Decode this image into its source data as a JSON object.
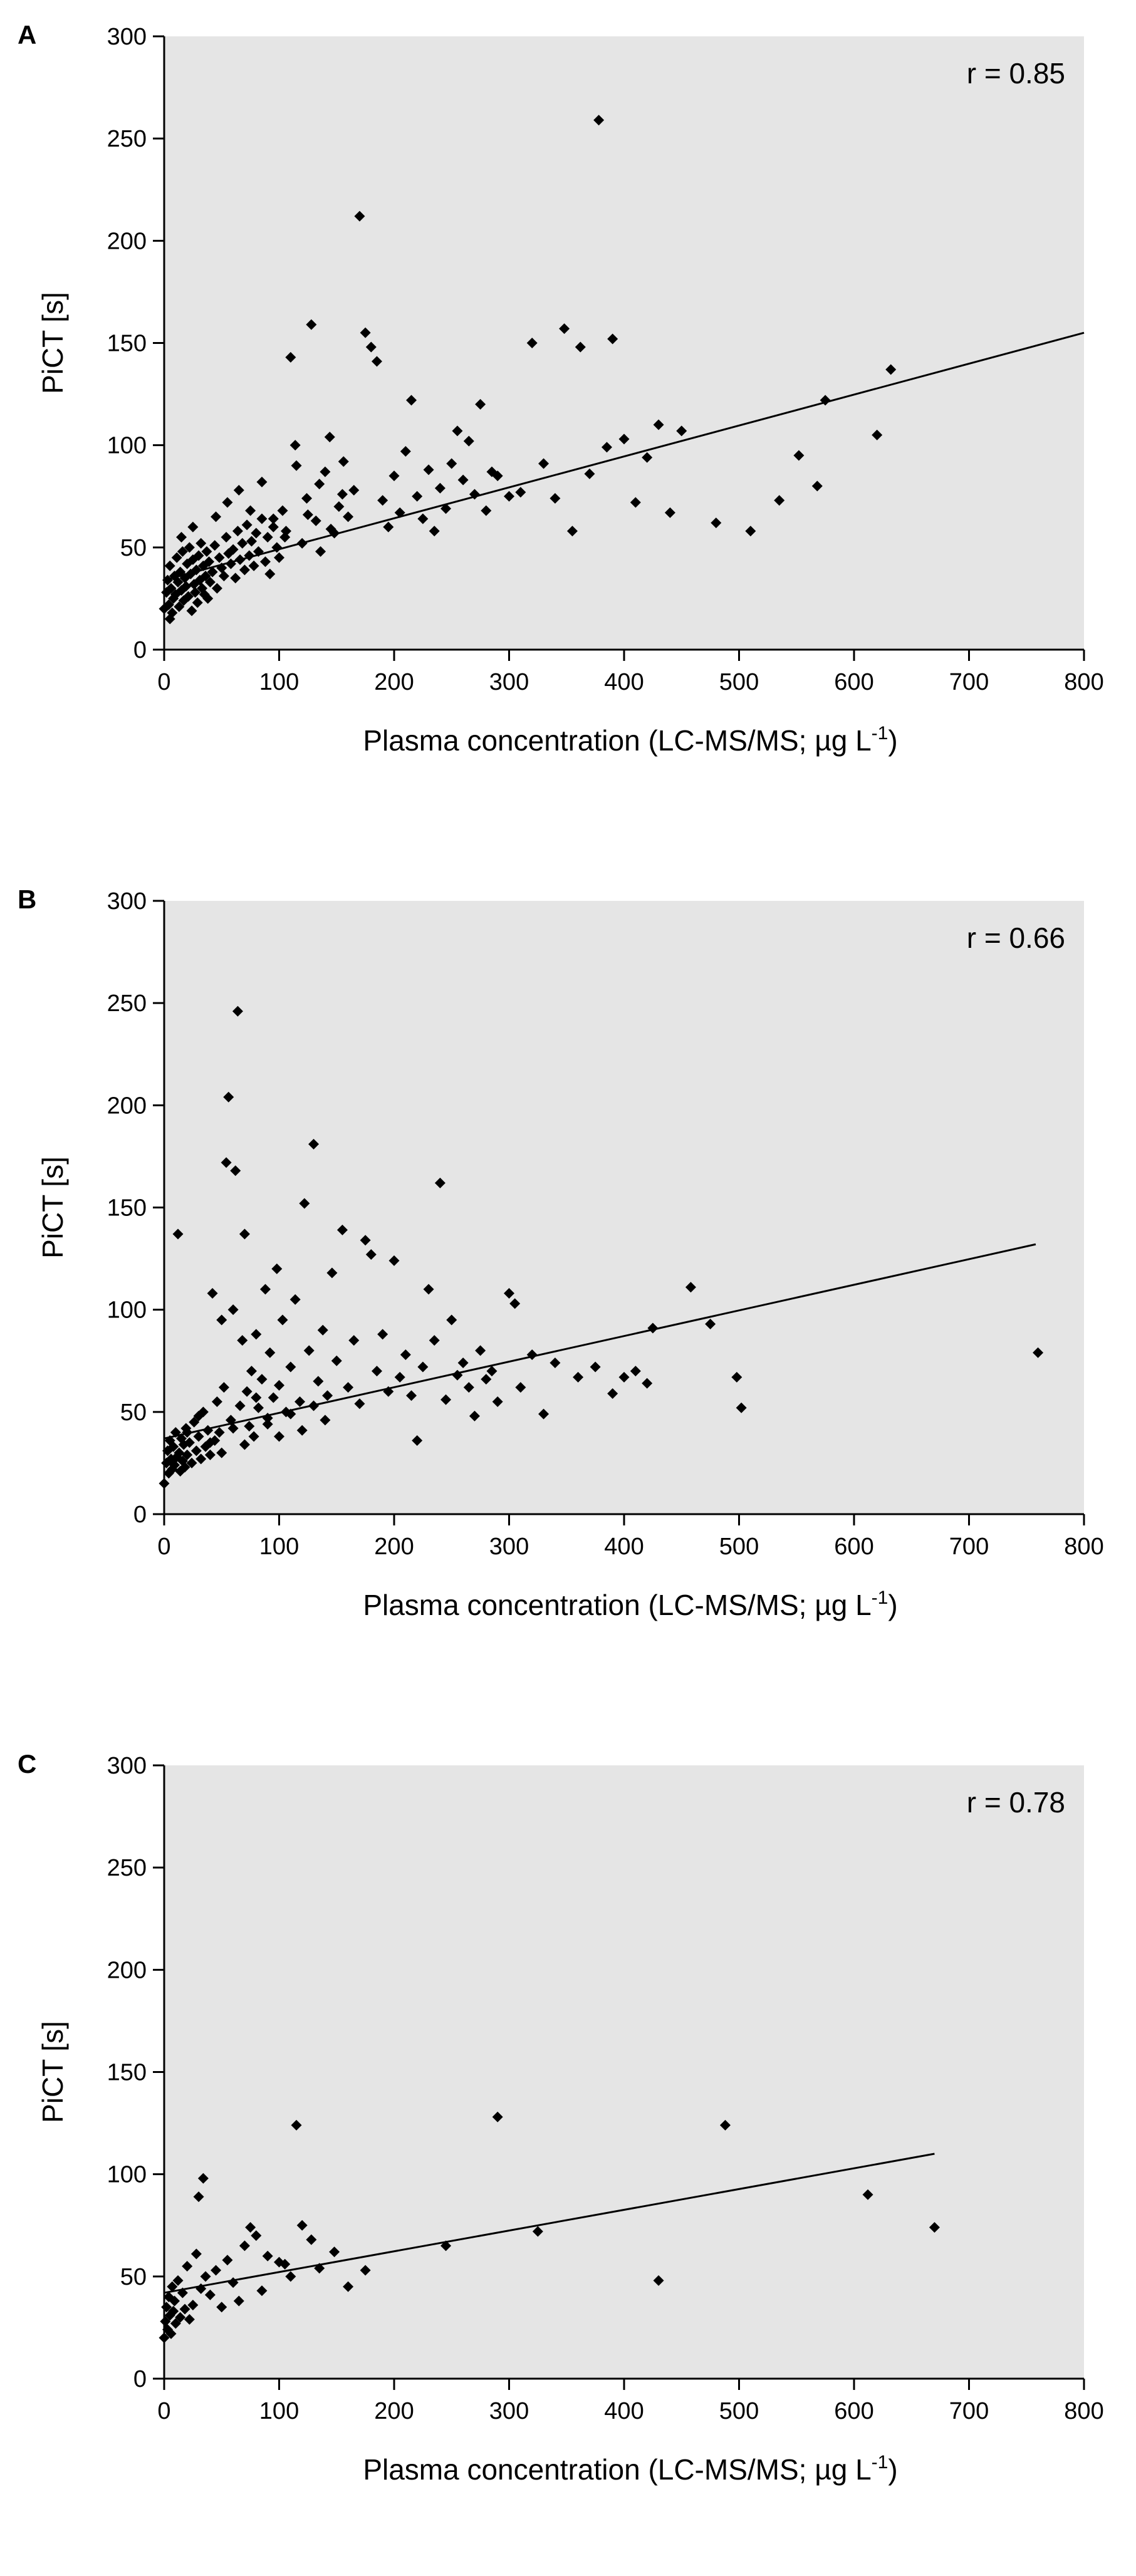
{
  "chart_data": [
    {
      "panel": "A",
      "type": "scatter",
      "xlabel": "Plasma concentration (LC-MS/MS; µg L",
      "xlabel_sup": "-1",
      "xlabel_end": ")",
      "ylabel": "PiCT [s]",
      "xlim": [
        0,
        800
      ],
      "ylim": [
        0,
        300
      ],
      "xticks": [
        0,
        100,
        200,
        300,
        400,
        500,
        600,
        700,
        800
      ],
      "yticks": [
        0,
        50,
        100,
        150,
        200,
        250,
        300
      ],
      "annotation": "r = 0.85",
      "regression": {
        "x": [
          0,
          800
        ],
        "y": [
          34,
          155
        ]
      },
      "points": [
        [
          0,
          20
        ],
        [
          2,
          28
        ],
        [
          3,
          34
        ],
        [
          4,
          22
        ],
        [
          5,
          41
        ],
        [
          6,
          30
        ],
        [
          7,
          18
        ],
        [
          8,
          25
        ],
        [
          9,
          36
        ],
        [
          10,
          27
        ],
        [
          11,
          45
        ],
        [
          12,
          33
        ],
        [
          13,
          21
        ],
        [
          14,
          38
        ],
        [
          15,
          29
        ],
        [
          16,
          48
        ],
        [
          17,
          24
        ],
        [
          18,
          35
        ],
        [
          19,
          31
        ],
        [
          20,
          42
        ],
        [
          21,
          26
        ],
        [
          22,
          50
        ],
        [
          23,
          37
        ],
        [
          24,
          19
        ],
        [
          25,
          44
        ],
        [
          26,
          32
        ],
        [
          27,
          28
        ],
        [
          28,
          39
        ],
        [
          29,
          23
        ],
        [
          30,
          46
        ],
        [
          31,
          34
        ],
        [
          32,
          52
        ],
        [
          33,
          30
        ],
        [
          34,
          41
        ],
        [
          35,
          27
        ],
        [
          36,
          36
        ],
        [
          37,
          48
        ],
        [
          38,
          25
        ],
        [
          39,
          43
        ],
        [
          40,
          33
        ],
        [
          42,
          38
        ],
        [
          44,
          51
        ],
        [
          46,
          30
        ],
        [
          48,
          45
        ],
        [
          50,
          40
        ],
        [
          52,
          36
        ],
        [
          54,
          55
        ],
        [
          56,
          47
        ],
        [
          58,
          42
        ],
        [
          60,
          49
        ],
        [
          62,
          35
        ],
        [
          64,
          58
        ],
        [
          66,
          44
        ],
        [
          68,
          52
        ],
        [
          70,
          39
        ],
        [
          72,
          61
        ],
        [
          74,
          46
        ],
        [
          76,
          53
        ],
        [
          78,
          41
        ],
        [
          80,
          57
        ],
        [
          82,
          48
        ],
        [
          85,
          64
        ],
        [
          88,
          43
        ],
        [
          90,
          55
        ],
        [
          92,
          37
        ],
        [
          95,
          60
        ],
        [
          98,
          50
        ],
        [
          100,
          45
        ],
        [
          103,
          68
        ],
        [
          106,
          58
        ],
        [
          110,
          143
        ],
        [
          114,
          100
        ],
        [
          120,
          52
        ],
        [
          124,
          74
        ],
        [
          128,
          159
        ],
        [
          132,
          63
        ],
        [
          136,
          48
        ],
        [
          140,
          87
        ],
        [
          144,
          104
        ],
        [
          148,
          57
        ],
        [
          152,
          70
        ],
        [
          156,
          92
        ],
        [
          160,
          65
        ],
        [
          165,
          78
        ],
        [
          170,
          212
        ],
        [
          175,
          155
        ],
        [
          180,
          148
        ],
        [
          185,
          141
        ],
        [
          190,
          73
        ],
        [
          195,
          60
        ],
        [
          200,
          85
        ],
        [
          205,
          67
        ],
        [
          210,
          97
        ],
        [
          215,
          122
        ],
        [
          220,
          75
        ],
        [
          225,
          64
        ],
        [
          230,
          88
        ],
        [
          235,
          58
        ],
        [
          240,
          79
        ],
        [
          245,
          69
        ],
        [
          250,
          91
        ],
        [
          255,
          107
        ],
        [
          260,
          83
        ],
        [
          265,
          102
        ],
        [
          270,
          76
        ],
        [
          275,
          120
        ],
        [
          280,
          68
        ],
        [
          285,
          87
        ],
        [
          290,
          85
        ],
        [
          300,
          75
        ],
        [
          310,
          77
        ],
        [
          320,
          150
        ],
        [
          330,
          91
        ],
        [
          340,
          74
        ],
        [
          348,
          157
        ],
        [
          355,
          58
        ],
        [
          362,
          148
        ],
        [
          370,
          86
        ],
        [
          378,
          259
        ],
        [
          385,
          99
        ],
        [
          390,
          152
        ],
        [
          400,
          103
        ],
        [
          410,
          72
        ],
        [
          420,
          94
        ],
        [
          430,
          110
        ],
        [
          440,
          67
        ],
        [
          450,
          107
        ],
        [
          480,
          62
        ],
        [
          510,
          58
        ],
        [
          535,
          73
        ],
        [
          552,
          95
        ],
        [
          568,
          80
        ],
        [
          575,
          122
        ],
        [
          620,
          105
        ],
        [
          632,
          137
        ],
        [
          5,
          15
        ],
        [
          15,
          55
        ],
        [
          25,
          60
        ],
        [
          45,
          65
        ],
        [
          55,
          72
        ],
        [
          65,
          78
        ],
        [
          75,
          68
        ],
        [
          85,
          82
        ],
        [
          95,
          64
        ],
        [
          105,
          55
        ],
        [
          115,
          90
        ],
        [
          125,
          66
        ],
        [
          135,
          81
        ],
        [
          145,
          59
        ],
        [
          155,
          76
        ]
      ]
    },
    {
      "panel": "B",
      "type": "scatter",
      "xlabel": "Plasma concentration (LC-MS/MS; µg L",
      "xlabel_sup": "-1",
      "xlabel_end": ")",
      "ylabel": "PiCT [s]",
      "xlim": [
        0,
        800
      ],
      "ylim": [
        0,
        300
      ],
      "xticks": [
        0,
        100,
        200,
        300,
        400,
        500,
        600,
        700,
        800
      ],
      "yticks": [
        0,
        50,
        100,
        150,
        200,
        250,
        300
      ],
      "annotation": "r = 0.66",
      "regression": {
        "x": [
          0,
          758
        ],
        "y": [
          37,
          132
        ]
      },
      "points": [
        [
          0,
          15
        ],
        [
          2,
          25
        ],
        [
          3,
          31
        ],
        [
          4,
          20
        ],
        [
          5,
          36
        ],
        [
          6,
          27
        ],
        [
          7,
          22
        ],
        [
          8,
          33
        ],
        [
          9,
          24
        ],
        [
          10,
          40
        ],
        [
          11,
          28
        ],
        [
          12,
          137
        ],
        [
          13,
          30
        ],
        [
          14,
          21
        ],
        [
          15,
          37
        ],
        [
          16,
          26
        ],
        [
          17,
          34
        ],
        [
          18,
          23
        ],
        [
          19,
          42
        ],
        [
          20,
          29
        ],
        [
          22,
          35
        ],
        [
          24,
          25
        ],
        [
          26,
          45
        ],
        [
          28,
          31
        ],
        [
          30,
          38
        ],
        [
          32,
          27
        ],
        [
          34,
          50
        ],
        [
          36,
          33
        ],
        [
          38,
          41
        ],
        [
          40,
          29
        ],
        [
          42,
          108
        ],
        [
          44,
          36
        ],
        [
          46,
          55
        ],
        [
          48,
          40
        ],
        [
          50,
          95
        ],
        [
          52,
          62
        ],
        [
          54,
          172
        ],
        [
          56,
          204
        ],
        [
          58,
          46
        ],
        [
          60,
          100
        ],
        [
          62,
          168
        ],
        [
          64,
          246
        ],
        [
          66,
          53
        ],
        [
          68,
          85
        ],
        [
          70,
          137
        ],
        [
          72,
          60
        ],
        [
          74,
          43
        ],
        [
          76,
          70
        ],
        [
          78,
          38
        ],
        [
          80,
          88
        ],
        [
          82,
          52
        ],
        [
          85,
          66
        ],
        [
          88,
          110
        ],
        [
          90,
          47
        ],
        [
          92,
          79
        ],
        [
          95,
          57
        ],
        [
          98,
          120
        ],
        [
          100,
          63
        ],
        [
          103,
          95
        ],
        [
          106,
          50
        ],
        [
          110,
          72
        ],
        [
          114,
          105
        ],
        [
          118,
          55
        ],
        [
          122,
          152
        ],
        [
          126,
          80
        ],
        [
          130,
          181
        ],
        [
          134,
          65
        ],
        [
          138,
          90
        ],
        [
          142,
          58
        ],
        [
          146,
          118
        ],
        [
          150,
          75
        ],
        [
          155,
          139
        ],
        [
          160,
          62
        ],
        [
          165,
          85
        ],
        [
          170,
          54
        ],
        [
          175,
          134
        ],
        [
          180,
          127
        ],
        [
          185,
          70
        ],
        [
          190,
          88
        ],
        [
          195,
          60
        ],
        [
          200,
          124
        ],
        [
          205,
          67
        ],
        [
          210,
          78
        ],
        [
          215,
          58
        ],
        [
          220,
          36
        ],
        [
          225,
          72
        ],
        [
          230,
          110
        ],
        [
          235,
          85
        ],
        [
          240,
          162
        ],
        [
          245,
          56
        ],
        [
          250,
          95
        ],
        [
          255,
          68
        ],
        [
          260,
          74
        ],
        [
          265,
          62
        ],
        [
          270,
          48
        ],
        [
          275,
          80
        ],
        [
          280,
          66
        ],
        [
          285,
          70
        ],
        [
          290,
          55
        ],
        [
          300,
          108
        ],
        [
          305,
          103
        ],
        [
          310,
          62
        ],
        [
          320,
          78
        ],
        [
          330,
          49
        ],
        [
          340,
          74
        ],
        [
          360,
          67
        ],
        [
          375,
          72
        ],
        [
          390,
          59
        ],
        [
          400,
          67
        ],
        [
          410,
          70
        ],
        [
          420,
          64
        ],
        [
          425,
          91
        ],
        [
          458,
          111
        ],
        [
          475,
          93
        ],
        [
          498,
          67
        ],
        [
          502,
          52
        ],
        [
          760,
          79
        ],
        [
          20,
          40
        ],
        [
          30,
          48
        ],
        [
          40,
          35
        ],
        [
          50,
          30
        ],
        [
          60,
          42
        ],
        [
          70,
          34
        ],
        [
          80,
          57
        ],
        [
          90,
          44
        ],
        [
          100,
          38
        ],
        [
          110,
          49
        ],
        [
          120,
          41
        ],
        [
          130,
          53
        ],
        [
          140,
          46
        ]
      ]
    },
    {
      "panel": "C",
      "type": "scatter",
      "xlabel": "Plasma concentration (LC-MS/MS; µg L",
      "xlabel_sup": "-1",
      "xlabel_end": ")",
      "ylabel": "PiCT [s]",
      "xlim": [
        0,
        800
      ],
      "ylim": [
        0,
        300
      ],
      "xticks": [
        0,
        100,
        200,
        300,
        400,
        500,
        600,
        700,
        800
      ],
      "yticks": [
        0,
        50,
        100,
        150,
        200,
        250,
        300
      ],
      "annotation": "r = 0.78",
      "regression": {
        "x": [
          0,
          670
        ],
        "y": [
          42,
          110
        ]
      },
      "points": [
        [
          0,
          20
        ],
        [
          1,
          28
        ],
        [
          2,
          35
        ],
        [
          3,
          24
        ],
        [
          4,
          40
        ],
        [
          5,
          31
        ],
        [
          6,
          22
        ],
        [
          7,
          45
        ],
        [
          8,
          33
        ],
        [
          9,
          38
        ],
        [
          10,
          27
        ],
        [
          12,
          48
        ],
        [
          14,
          30
        ],
        [
          16,
          42
        ],
        [
          18,
          34
        ],
        [
          20,
          55
        ],
        [
          22,
          29
        ],
        [
          25,
          36
        ],
        [
          28,
          61
        ],
        [
          30,
          89
        ],
        [
          32,
          44
        ],
        [
          34,
          98
        ],
        [
          36,
          50
        ],
        [
          40,
          41
        ],
        [
          45,
          53
        ],
        [
          50,
          35
        ],
        [
          55,
          58
        ],
        [
          60,
          47
        ],
        [
          65,
          38
        ],
        [
          70,
          65
        ],
        [
          75,
          74
        ],
        [
          80,
          70
        ],
        [
          85,
          43
        ],
        [
          90,
          60
        ],
        [
          100,
          57
        ],
        [
          105,
          56
        ],
        [
          110,
          50
        ],
        [
          115,
          124
        ],
        [
          120,
          75
        ],
        [
          128,
          68
        ],
        [
          135,
          54
        ],
        [
          148,
          62
        ],
        [
          160,
          45
        ],
        [
          175,
          53
        ],
        [
          245,
          65
        ],
        [
          290,
          128
        ],
        [
          325,
          72
        ],
        [
          430,
          48
        ],
        [
          488,
          124
        ],
        [
          612,
          90
        ],
        [
          670,
          74
        ]
      ]
    }
  ]
}
